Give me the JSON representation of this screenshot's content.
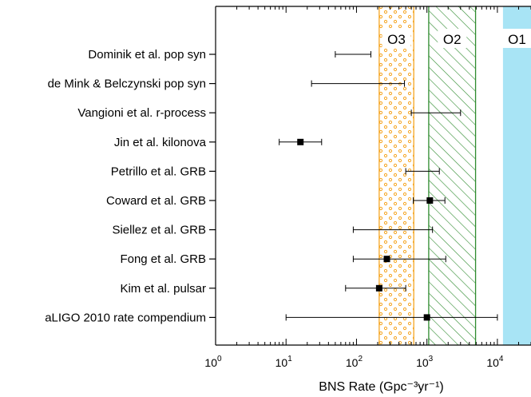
{
  "chart_data": {
    "type": "scatter",
    "x_scale": "log",
    "xlim": [
      1,
      30000
    ],
    "xlabel": "BNS Rate (Gpc⁻³yr⁻¹)",
    "x_ticks": [
      {
        "value": 1,
        "base": "10",
        "exp": "0"
      },
      {
        "value": 10,
        "base": "10",
        "exp": "1"
      },
      {
        "value": 100,
        "base": "10",
        "exp": "2"
      },
      {
        "value": 1000,
        "base": "10",
        "exp": "3"
      },
      {
        "value": 10000,
        "base": "10",
        "exp": "4"
      }
    ],
    "bands": [
      {
        "label": "O3",
        "from": 210,
        "to": 650,
        "style": "dots",
        "color": "#f5a623"
      },
      {
        "label": "O2",
        "from": 1060,
        "to": 4900,
        "style": "hatch",
        "color": "#2e8b2e"
      },
      {
        "label": "O1",
        "from": 12000,
        "to": 30000,
        "style": "solid",
        "color": "#a8e4f5"
      }
    ],
    "series": [
      {
        "category": "Dominik et al. pop syn",
        "value": null,
        "lower": 50,
        "upper": 160
      },
      {
        "category": "de Mink & Belczynski pop syn",
        "value": null,
        "lower": 23,
        "upper": 480
      },
      {
        "category": "Vangioni et al. r-process",
        "value": null,
        "lower": 600,
        "upper": 3000
      },
      {
        "category": "Jin et al. kilonova",
        "value": 16,
        "lower": 8,
        "upper": 32
      },
      {
        "category": "Petrillo et al. GRB",
        "value": null,
        "lower": 500,
        "upper": 1500
      },
      {
        "category": "Coward et al. GRB",
        "value": 1100,
        "lower": 640,
        "upper": 1800
      },
      {
        "category": "Siellez et al. GRB",
        "value": null,
        "lower": 90,
        "upper": 1200
      },
      {
        "category": "Fong et al. GRB",
        "value": 270,
        "lower": 90,
        "upper": 1850
      },
      {
        "category": "Kim et al. pulsar",
        "value": 210,
        "lower": 70,
        "upper": 500
      },
      {
        "category": "aLIGO 2010 rate compendium",
        "value": 1000,
        "lower": 10,
        "upper": 10000
      }
    ]
  }
}
